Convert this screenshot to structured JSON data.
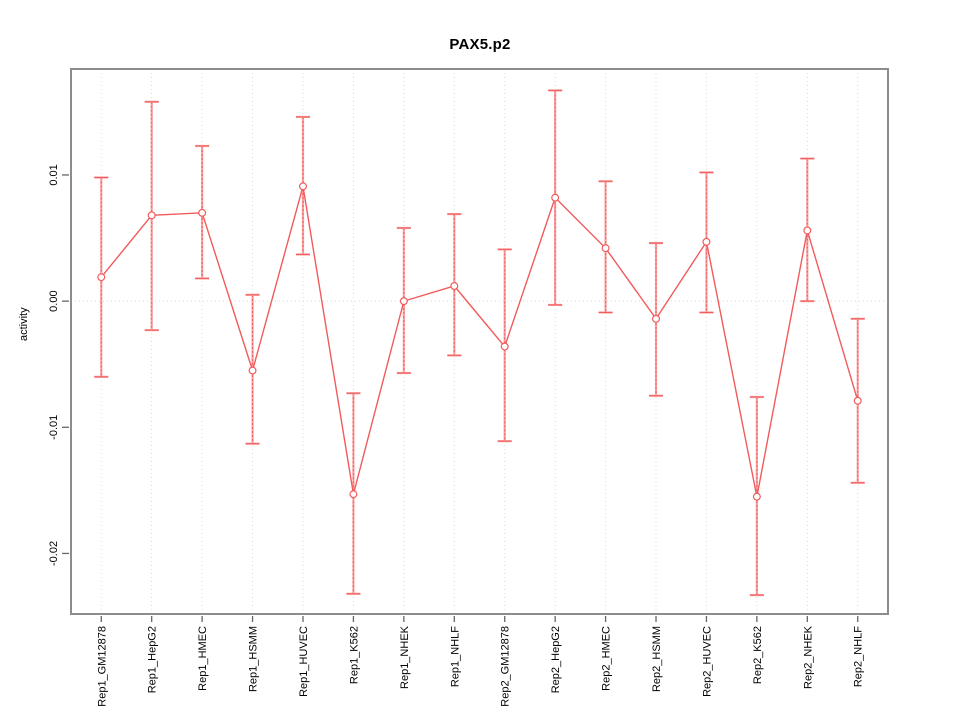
{
  "title": "PAX5.p2",
  "ylabel": "activity",
  "chart_data": {
    "type": "line",
    "title": "PAX5.p2",
    "xlabel": "",
    "ylabel": "activity",
    "legend_position": "none",
    "grid": "vertical dotted gridlines at each category; dotted horizontal line at y=0",
    "categories": [
      "Rep1_GM12878",
      "Rep1_HepG2",
      "Rep1_HMEC",
      "Rep1_HSMM",
      "Rep1_HUVEC",
      "Rep1_K562",
      "Rep1_NHEK",
      "Rep1_NHLF",
      "Rep2_GM12878",
      "Rep2_HepG2",
      "Rep2_HMEC",
      "Rep2_HSMM",
      "Rep2_HUVEC",
      "Rep2_K562",
      "Rep2_NHEK",
      "Rep2_NHLF"
    ],
    "series": [
      {
        "name": "activity",
        "marker": "open-circle",
        "values": [
          0.0019,
          0.0068,
          0.007,
          -0.0055,
          0.0091,
          -0.0153,
          0.0,
          0.0012,
          -0.0036,
          0.0082,
          0.0042,
          -0.0014,
          0.0047,
          -0.0155,
          0.0056,
          -0.0079
        ],
        "error_low": [
          -0.006,
          -0.0023,
          0.0018,
          -0.0113,
          0.0037,
          -0.0232,
          -0.0057,
          -0.0043,
          -0.0111,
          -0.0003,
          -0.0009,
          -0.0075,
          -0.0009,
          -0.0233,
          0.0,
          -0.0144
        ],
        "error_high": [
          0.0098,
          0.0158,
          0.0123,
          0.0005,
          0.0146,
          -0.0073,
          0.0058,
          0.0069,
          0.0041,
          0.0167,
          0.0095,
          0.0046,
          0.0102,
          -0.0076,
          0.0113,
          -0.0014
        ]
      }
    ],
    "ylim": [
      -0.0248,
      0.0184
    ],
    "yticks": [
      0.01,
      0.0,
      -0.01,
      -0.02
    ],
    "ytick_labels": [
      "0.01",
      "0.00",
      "-0.01",
      "-0.02"
    ],
    "colors": {
      "line": "#f15b5b",
      "error_bar": "#f9a0a0",
      "marker_fill": "#ffffff",
      "gridline": "#d9d9d9",
      "zero_line": "#d9d9d9",
      "plot_border": "#8c8c8c",
      "tick": "#666666",
      "text": "#000000",
      "background": "#ffffff"
    }
  }
}
